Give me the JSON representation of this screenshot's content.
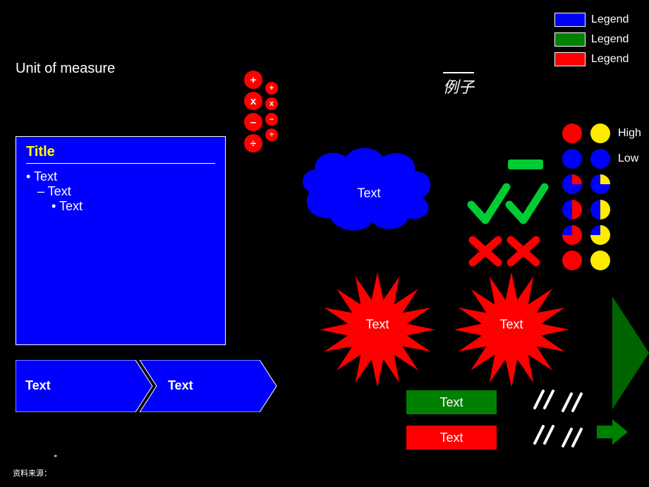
{
  "background": "#000000",
  "subtitle": "Unit of measure",
  "legend": {
    "items": [
      {
        "color": "#0000ff",
        "label": "Legend"
      },
      {
        "color": "#008000",
        "label": "Legend"
      },
      {
        "color": "#ff0000",
        "label": "Legend"
      }
    ],
    "text_color": "#ffffff",
    "swatch_border": "#ffffff"
  },
  "example_label": "例子",
  "title_box": {
    "bg": "#0000ff",
    "border": "#ffffff",
    "title": "Title",
    "title_color": "#ffff00",
    "bullets": {
      "b1": "• Text",
      "b2": "– Text",
      "b3": "• Text"
    },
    "bullet_color": "#ffffff"
  },
  "operators": {
    "bg": "#ff0000",
    "color": "#ffffff",
    "big": [
      "+",
      "x",
      "–",
      "÷"
    ],
    "small": [
      "+",
      "x",
      "–",
      "÷"
    ]
  },
  "cloud": {
    "fill": "#0000ff",
    "stroke": "#000000",
    "label": "Text"
  },
  "bursts": {
    "fill": "#ff0000",
    "stroke": "#000000",
    "items": [
      {
        "label": "Text"
      },
      {
        "label": "Text"
      }
    ]
  },
  "chevrons": {
    "fill": "#0000ff",
    "stroke": "#ffffff",
    "text_color": "#ffffff",
    "items": [
      {
        "label": "Text"
      },
      {
        "label": "Text"
      }
    ]
  },
  "marks": {
    "dash_color": "#00cc33",
    "check_color": "#00cc33",
    "cross_color": "#ff0000"
  },
  "status": {
    "labels": {
      "high": "High",
      "low": "Low"
    },
    "colA_base": "#0000ff",
    "colB_base": "#ffeb00",
    "accent": "#ff0000",
    "rows": 6
  },
  "rect_buttons": {
    "items": [
      {
        "label": "Text",
        "bg": "#008000"
      },
      {
        "label": "Text",
        "bg": "#ff0000"
      }
    ]
  },
  "tally": {
    "color": "#ffffff"
  },
  "arrows": {
    "big_fill": "#006400",
    "small_fill": "#008000"
  },
  "footer": {
    "asterisk": "*",
    "source": "资料来源："
  }
}
